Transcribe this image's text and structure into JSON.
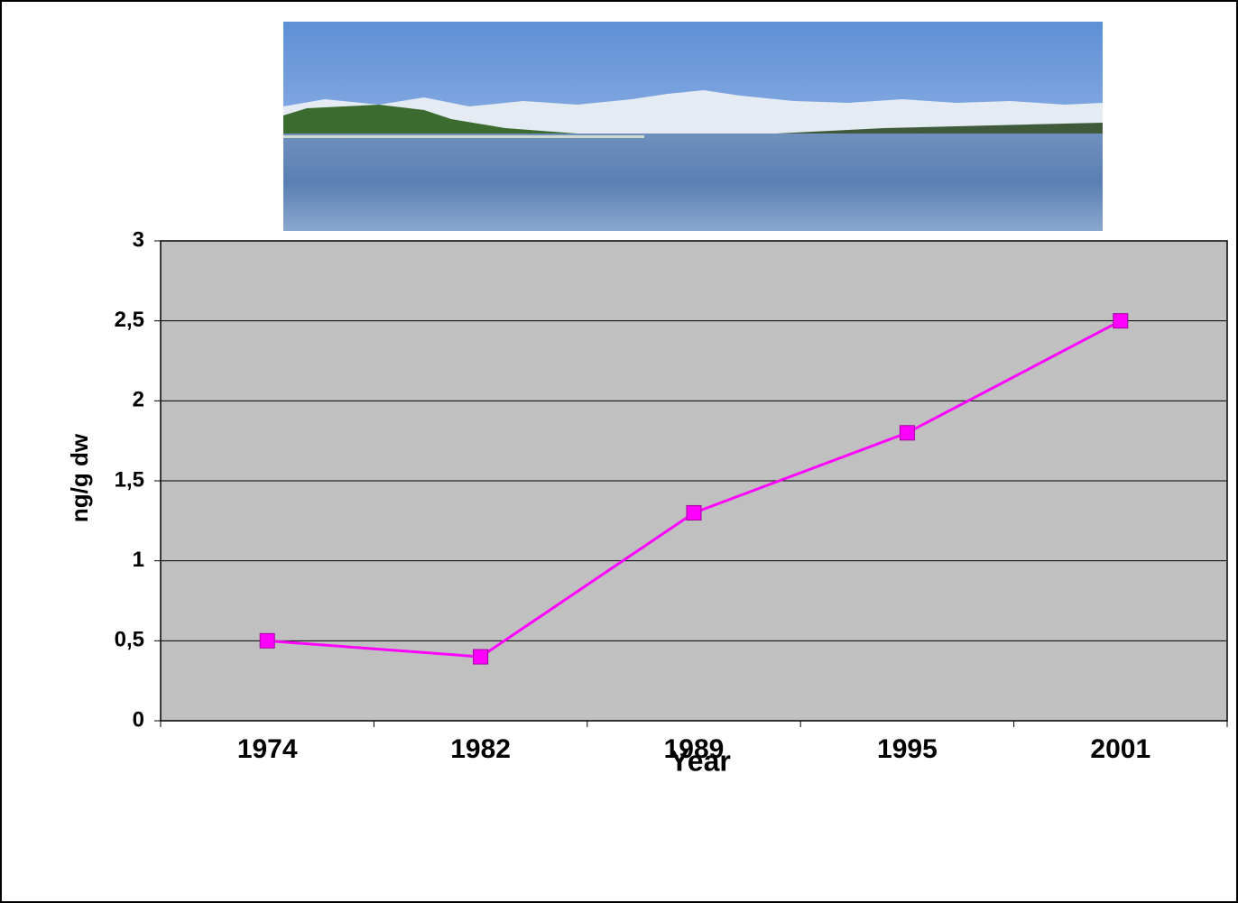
{
  "chart_data": {
    "type": "line",
    "x_label": "Year",
    "y_label": "ng/g dw",
    "categories": [
      "1974",
      "1982",
      "1989",
      "1995",
      "2001"
    ],
    "values": [
      0.5,
      0.4,
      1.3,
      1.8,
      2.5
    ],
    "color": "#ff00ff",
    "ylim": [
      0,
      3
    ],
    "yticks": [
      0,
      {
        "value": 0.5,
        "label": "0,5"
      },
      1,
      {
        "value": 1.5,
        "label": "1,5"
      },
      2,
      {
        "value": 2.5,
        "label": "2,5"
      },
      3
    ],
    "grid": true
  }
}
